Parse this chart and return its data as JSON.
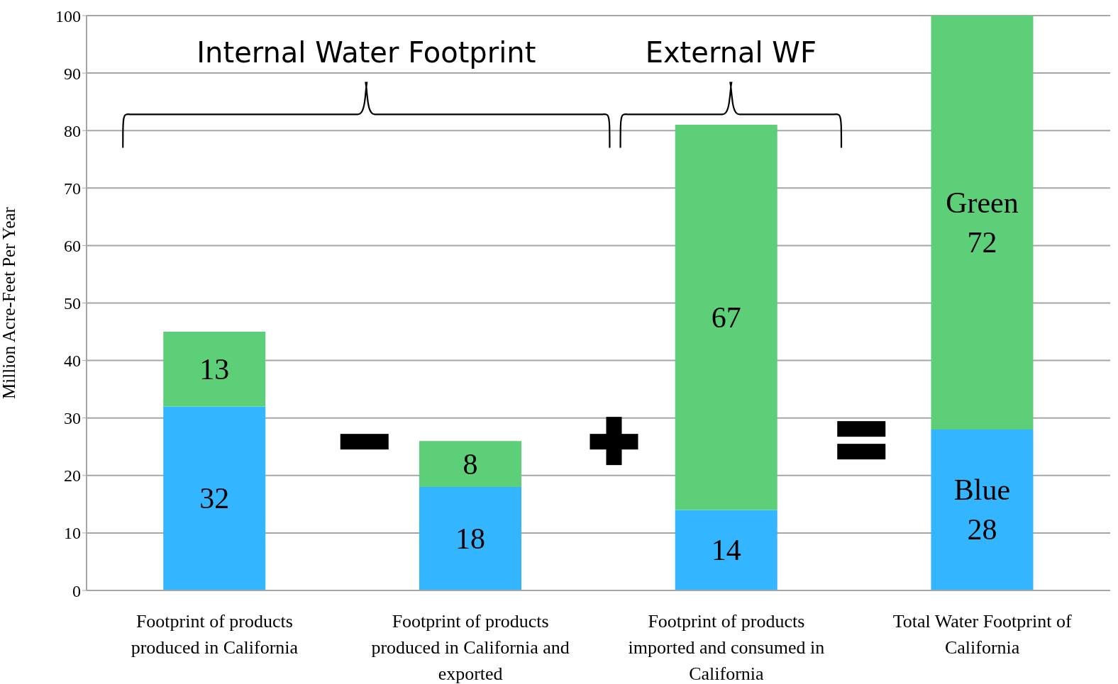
{
  "chart_data": {
    "type": "bar",
    "stacked": true,
    "categories": [
      "Footprint of products produced in California",
      "Footprint of products produced in California and exported",
      "Footprint of products imported and consumed in California",
      "Total Water Footprint of California"
    ],
    "series": [
      {
        "color": "#33b5ff",
        "values": [
          32,
          18,
          14,
          28
        ],
        "value_labels": [
          "32",
          "18",
          "14",
          "Blue 28"
        ]
      },
      {
        "color": "#5ccf78",
        "values": [
          13,
          8,
          67,
          72
        ],
        "value_labels": [
          "13",
          "8",
          "67",
          "Green 72"
        ]
      }
    ],
    "ylabel": "Million Acre-Feet Per Year",
    "ylim": [
      0,
      100
    ],
    "yticks": [
      0,
      10,
      20,
      30,
      40,
      50,
      60,
      70,
      80,
      90,
      100
    ],
    "grid": "y",
    "annotations": [
      "Internal Water Footprint",
      "External WF"
    ]
  }
}
